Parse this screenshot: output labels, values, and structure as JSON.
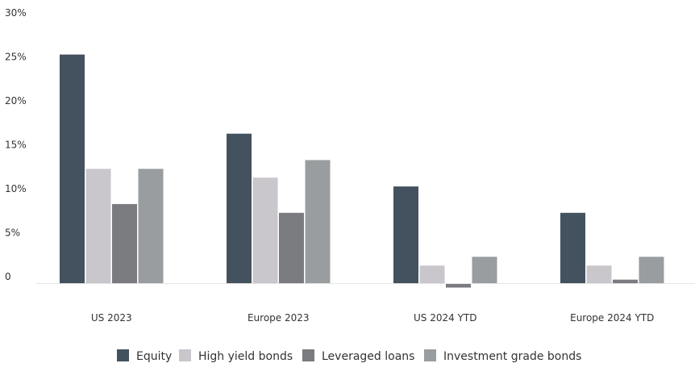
{
  "chart_data": {
    "type": "bar",
    "title": "",
    "xlabel": "",
    "ylabel": "",
    "ylim": [
      0,
      30
    ],
    "yticks": [
      "0",
      "5%",
      "10%",
      "15%",
      "20%",
      "25%",
      "30%"
    ],
    "grid": false,
    "legend_position": "bottom",
    "categories": [
      "US 2023",
      "Europe 2023",
      "US 2024 YTD",
      "Europe 2024 YTD"
    ],
    "series": [
      {
        "name": "Equity",
        "color": "#44525f",
        "values": [
          26,
          17,
          11,
          8
        ]
      },
      {
        "name": "High yield bonds",
        "color": "#c9c6cc",
        "values": [
          13,
          12,
          2,
          2
        ]
      },
      {
        "name": "Leveraged loans",
        "color": "#7a7b7e",
        "values": [
          9,
          8,
          -0.5,
          0.4
        ]
      },
      {
        "name": "Investment grade bonds",
        "color": "#9a9d9f",
        "values": [
          13,
          14,
          3,
          3
        ]
      }
    ]
  }
}
